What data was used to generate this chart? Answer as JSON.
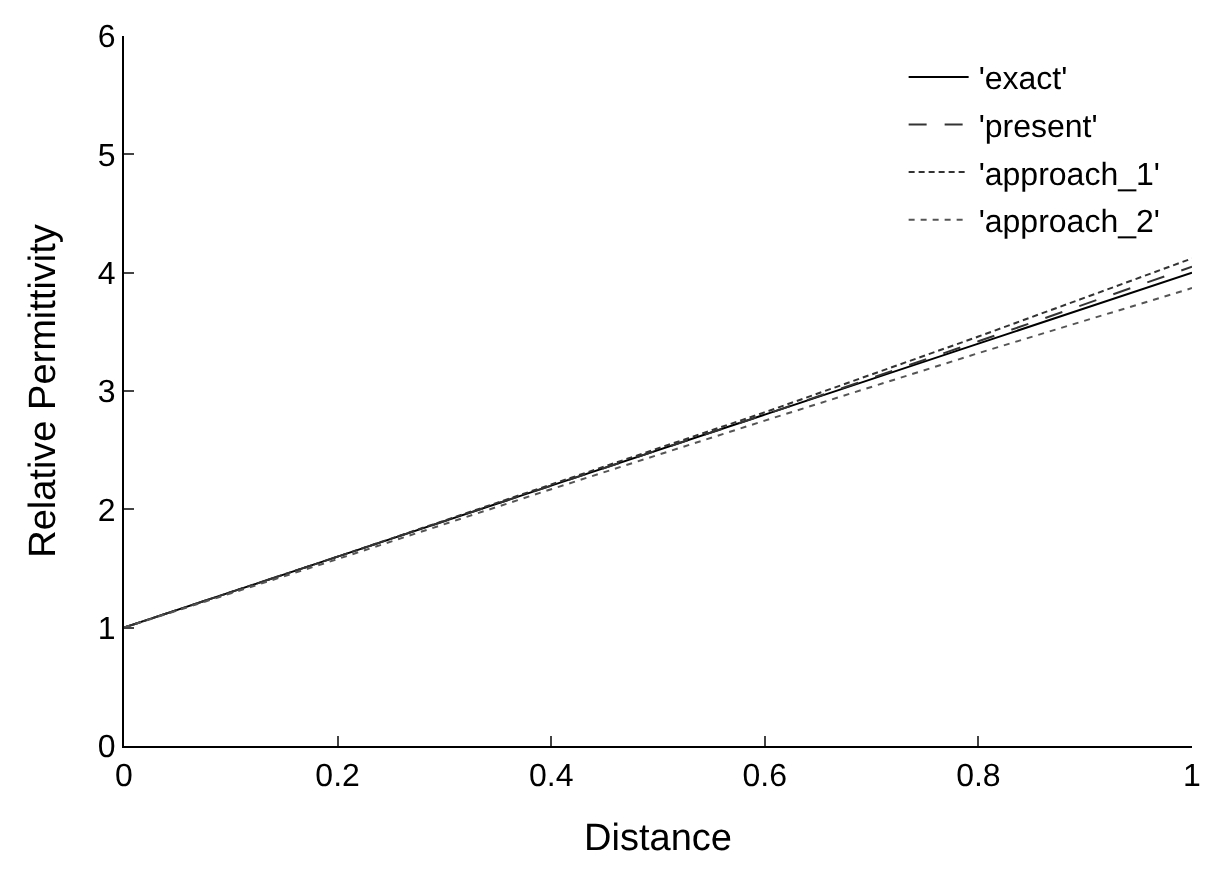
{
  "chart_data": {
    "type": "line",
    "xlabel": "Distance",
    "ylabel": "Relative Permittivity",
    "x": [
      0,
      0.2,
      0.4,
      0.6,
      0.8,
      1
    ],
    "xlim": [
      0,
      1
    ],
    "ylim": [
      0,
      6
    ],
    "xticks": [
      0,
      0.2,
      0.4,
      0.6,
      0.8,
      1
    ],
    "yticks": [
      0,
      1,
      2,
      3,
      4,
      5,
      6
    ],
    "legend": "top right",
    "marker": "none",
    "series": [
      {
        "name": "'exact'",
        "color": "#000000",
        "line_style": "solid",
        "values": [
          1,
          1.6,
          2.2,
          2.8,
          3.4,
          4.0
        ]
      },
      {
        "name": "'present'",
        "color": "#333333",
        "line_style": "dashed",
        "values": [
          1,
          1.6,
          2.2,
          2.8,
          3.42,
          4.05
        ]
      },
      {
        "name": "'approach_1'",
        "color": "#333333",
        "line_style": "dashed",
        "values": [
          1,
          1.6,
          2.21,
          2.82,
          3.46,
          4.12
        ]
      },
      {
        "name": "'approach_2'",
        "color": "#555555",
        "line_style": "dotted",
        "values": [
          1,
          1.58,
          2.17,
          2.75,
          3.32,
          3.87
        ]
      }
    ]
  }
}
